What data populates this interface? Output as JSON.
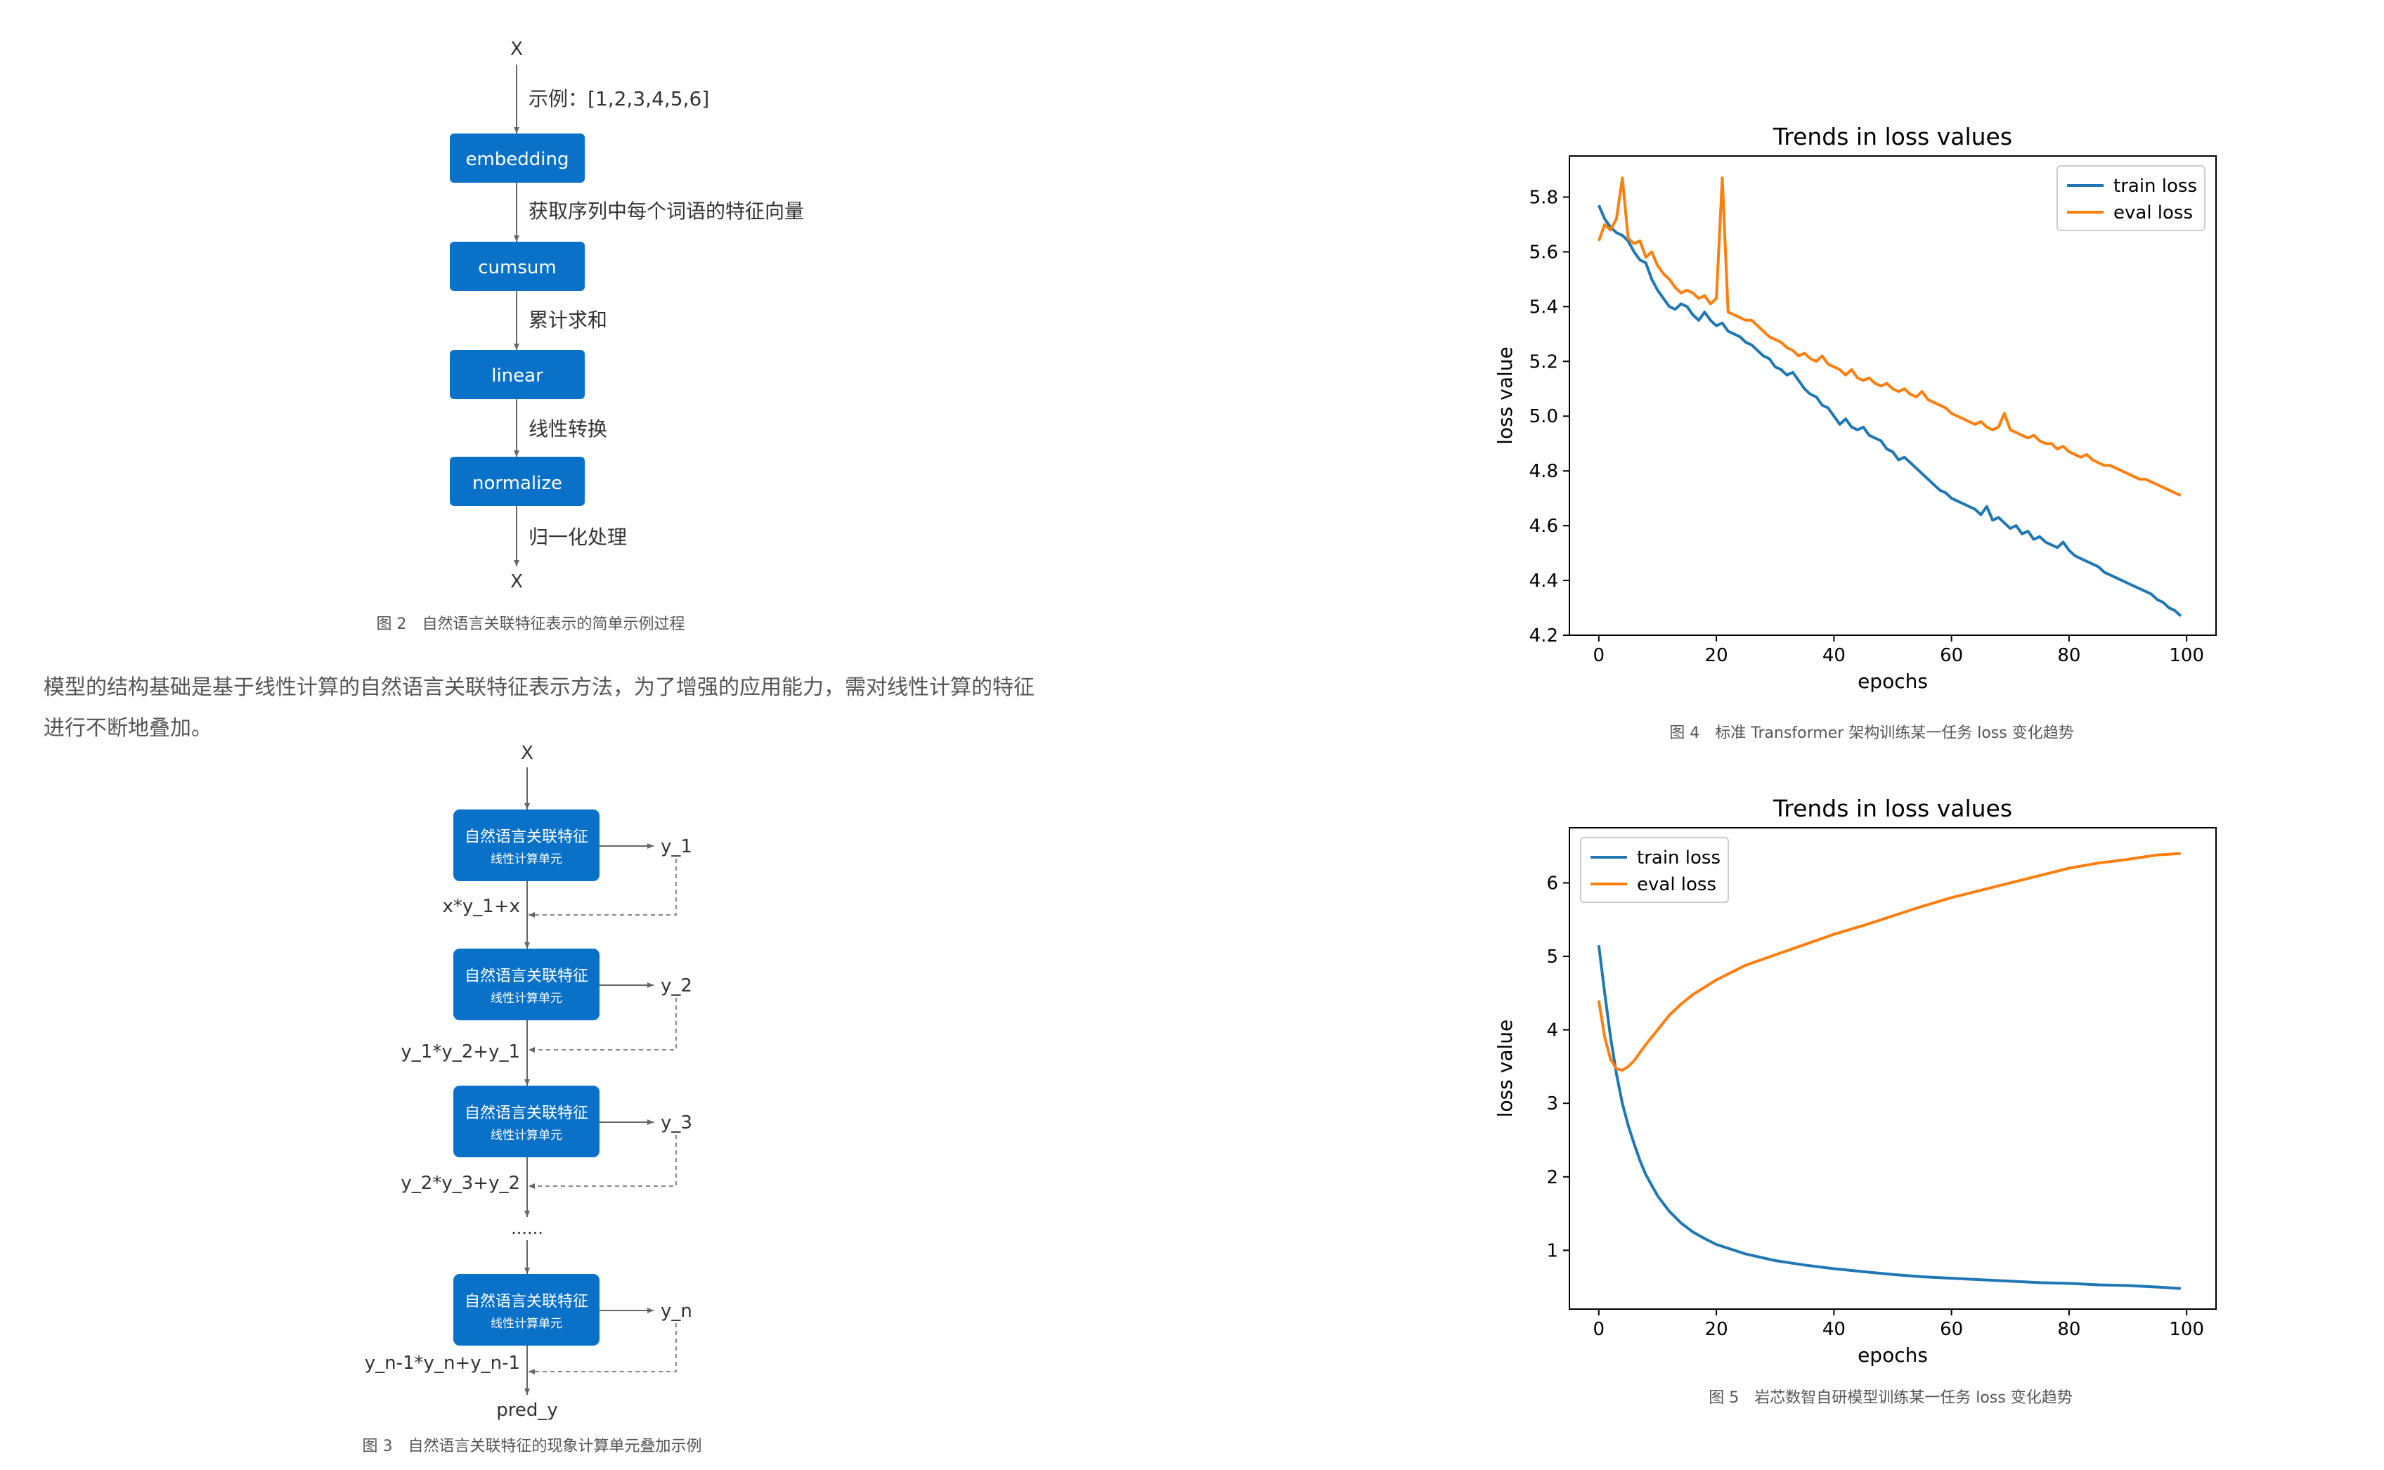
{
  "fig2": {
    "top_label": "X",
    "bottom_label": "X",
    "boxes": [
      "embedding",
      "cumsum",
      "linear",
      "normalize"
    ],
    "edge_labels": [
      "示例：[1,2,3,4,5,6]",
      "获取序列中每个词语的特征向量",
      "累计求和",
      "线性转换",
      "归一化处理"
    ],
    "caption": "图 2　自然语言关联特征表示的简单示例过程"
  },
  "paragraph": "模型的结构基础是基于线性计算的自然语言关联特征表示方法，为了增强的应用能力，需对线性计算的特征进行不断地叠加。",
  "fig3": {
    "top_label": "X",
    "unit_title": "自然语言关联特征",
    "unit_subtitle": "线性计算单元",
    "outputs": [
      "y_1",
      "y_2",
      "y_3",
      "y_n"
    ],
    "combines": [
      "x*y_1+x",
      "y_1*y_2+y_1",
      "y_2*y_3+y_2",
      "y_n-1*y_n+y_n-1"
    ],
    "ellipsis": "......",
    "final": "pred_y",
    "caption": "图 3　自然语言关联特征的现象计算单元叠加示例"
  },
  "fig4": {
    "caption": "图 4　标准 Transformer 架构训练某一任务 loss 变化趋势"
  },
  "fig5": {
    "caption": "图 5　岩芯数智自研模型训练某一任务 loss 变化趋势"
  },
  "chart_data": [
    {
      "type": "line",
      "title": "Trends in loss values",
      "xlabel": "epochs",
      "ylabel": "loss value",
      "xlim": [
        -5,
        105
      ],
      "ylim": [
        4.2,
        5.95
      ],
      "xticks": [
        0,
        20,
        40,
        60,
        80,
        100
      ],
      "yticks": [
        4.2,
        4.4,
        4.6,
        4.8,
        5.0,
        5.2,
        5.4,
        5.6,
        5.8
      ],
      "legend": "top-right",
      "grid": false,
      "series": [
        {
          "name": "train loss",
          "color": "#1f77b4",
          "x": [
            0,
            1,
            2,
            3,
            4,
            5,
            6,
            7,
            8,
            9,
            10,
            11,
            12,
            13,
            14,
            15,
            16,
            17,
            18,
            19,
            20,
            21,
            22,
            23,
            24,
            25,
            26,
            27,
            28,
            29,
            30,
            31,
            32,
            33,
            34,
            35,
            36,
            37,
            38,
            39,
            40,
            41,
            42,
            43,
            44,
            45,
            46,
            47,
            48,
            49,
            50,
            51,
            52,
            53,
            54,
            55,
            56,
            57,
            58,
            59,
            60,
            61,
            62,
            63,
            64,
            65,
            66,
            67,
            68,
            69,
            70,
            71,
            72,
            73,
            74,
            75,
            76,
            77,
            78,
            79,
            80,
            81,
            82,
            83,
            84,
            85,
            86,
            87,
            88,
            89,
            90,
            91,
            92,
            93,
            94,
            95,
            96,
            97,
            98,
            99
          ],
          "y": [
            5.77,
            5.72,
            5.69,
            5.67,
            5.66,
            5.64,
            5.6,
            5.57,
            5.56,
            5.5,
            5.46,
            5.43,
            5.4,
            5.39,
            5.41,
            5.4,
            5.37,
            5.35,
            5.38,
            5.35,
            5.33,
            5.34,
            5.31,
            5.3,
            5.29,
            5.27,
            5.26,
            5.24,
            5.22,
            5.21,
            5.18,
            5.17,
            5.15,
            5.16,
            5.13,
            5.1,
            5.08,
            5.07,
            5.04,
            5.03,
            5.0,
            4.97,
            4.99,
            4.96,
            4.95,
            4.96,
            4.93,
            4.92,
            4.91,
            4.88,
            4.87,
            4.84,
            4.85,
            4.83,
            4.81,
            4.79,
            4.77,
            4.75,
            4.73,
            4.72,
            4.7,
            4.69,
            4.68,
            4.67,
            4.66,
            4.64,
            4.67,
            4.62,
            4.63,
            4.61,
            4.59,
            4.6,
            4.57,
            4.58,
            4.55,
            4.56,
            4.54,
            4.53,
            4.52,
            4.54,
            4.51,
            4.49,
            4.48,
            4.47,
            4.46,
            4.45,
            4.43,
            4.42,
            4.41,
            4.4,
            4.39,
            4.38,
            4.37,
            4.36,
            4.35,
            4.33,
            4.32,
            4.3,
            4.29,
            4.27
          ]
        },
        {
          "name": "eval loss",
          "color": "#ff7f0e",
          "x": [
            0,
            1,
            2,
            3,
            4,
            5,
            6,
            7,
            8,
            9,
            10,
            11,
            12,
            13,
            14,
            15,
            16,
            17,
            18,
            19,
            20,
            21,
            22,
            23,
            24,
            25,
            26,
            27,
            28,
            29,
            30,
            31,
            32,
            33,
            34,
            35,
            36,
            37,
            38,
            39,
            40,
            41,
            42,
            43,
            44,
            45,
            46,
            47,
            48,
            49,
            50,
            51,
            52,
            53,
            54,
            55,
            56,
            57,
            58,
            59,
            60,
            61,
            62,
            63,
            64,
            65,
            66,
            67,
            68,
            69,
            70,
            71,
            72,
            73,
            74,
            75,
            76,
            77,
            78,
            79,
            80,
            81,
            82,
            83,
            84,
            85,
            86,
            87,
            88,
            89,
            90,
            91,
            92,
            93,
            94,
            95,
            96,
            97,
            98,
            99
          ],
          "y": [
            5.64,
            5.7,
            5.68,
            5.72,
            5.87,
            5.65,
            5.63,
            5.64,
            5.58,
            5.6,
            5.55,
            5.52,
            5.5,
            5.47,
            5.45,
            5.46,
            5.45,
            5.43,
            5.44,
            5.41,
            5.43,
            5.87,
            5.38,
            5.37,
            5.36,
            5.35,
            5.35,
            5.33,
            5.31,
            5.29,
            5.28,
            5.27,
            5.25,
            5.24,
            5.22,
            5.23,
            5.21,
            5.2,
            5.22,
            5.19,
            5.18,
            5.17,
            5.15,
            5.17,
            5.14,
            5.13,
            5.14,
            5.12,
            5.11,
            5.12,
            5.1,
            5.09,
            5.1,
            5.08,
            5.07,
            5.09,
            5.06,
            5.05,
            5.04,
            5.03,
            5.01,
            5.0,
            4.99,
            4.98,
            4.97,
            4.98,
            4.96,
            4.95,
            4.96,
            5.01,
            4.95,
            4.94,
            4.93,
            4.92,
            4.93,
            4.91,
            4.9,
            4.9,
            4.88,
            4.89,
            4.87,
            4.86,
            4.85,
            4.86,
            4.84,
            4.83,
            4.82,
            4.82,
            4.81,
            4.8,
            4.79,
            4.78,
            4.77,
            4.77,
            4.76,
            4.75,
            4.74,
            4.73,
            4.72,
            4.71
          ]
        }
      ]
    },
    {
      "type": "line",
      "title": "Trends in loss values",
      "xlabel": "epochs",
      "ylabel": "loss value",
      "xlim": [
        -5,
        105
      ],
      "ylim": [
        0.2,
        6.75
      ],
      "xticks": [
        0,
        20,
        40,
        60,
        80,
        100
      ],
      "yticks": [
        1,
        2,
        3,
        4,
        5,
        6
      ],
      "legend": "top-left",
      "grid": false,
      "series": [
        {
          "name": "train loss",
          "color": "#1f77b4",
          "x": [
            0,
            1,
            2,
            3,
            4,
            5,
            6,
            7,
            8,
            10,
            12,
            14,
            16,
            18,
            20,
            25,
            30,
            35,
            40,
            45,
            50,
            55,
            60,
            65,
            70,
            75,
            80,
            85,
            90,
            95,
            99
          ],
          "y": [
            5.15,
            4.5,
            3.9,
            3.4,
            3.0,
            2.7,
            2.45,
            2.22,
            2.03,
            1.74,
            1.53,
            1.37,
            1.25,
            1.16,
            1.08,
            0.95,
            0.86,
            0.8,
            0.75,
            0.71,
            0.67,
            0.64,
            0.62,
            0.6,
            0.58,
            0.56,
            0.55,
            0.53,
            0.52,
            0.5,
            0.48
          ]
        },
        {
          "name": "eval loss",
          "color": "#ff7f0e",
          "x": [
            0,
            1,
            2,
            3,
            4,
            5,
            6,
            8,
            10,
            12,
            14,
            16,
            18,
            20,
            25,
            30,
            35,
            40,
            45,
            50,
            55,
            60,
            65,
            70,
            75,
            80,
            85,
            90,
            95,
            99
          ],
          "y": [
            4.4,
            3.9,
            3.6,
            3.47,
            3.45,
            3.5,
            3.58,
            3.8,
            4.0,
            4.2,
            4.35,
            4.48,
            4.58,
            4.68,
            4.88,
            5.02,
            5.16,
            5.3,
            5.42,
            5.55,
            5.68,
            5.8,
            5.9,
            6.0,
            6.1,
            6.2,
            6.27,
            6.32,
            6.38,
            6.4
          ]
        }
      ]
    }
  ]
}
